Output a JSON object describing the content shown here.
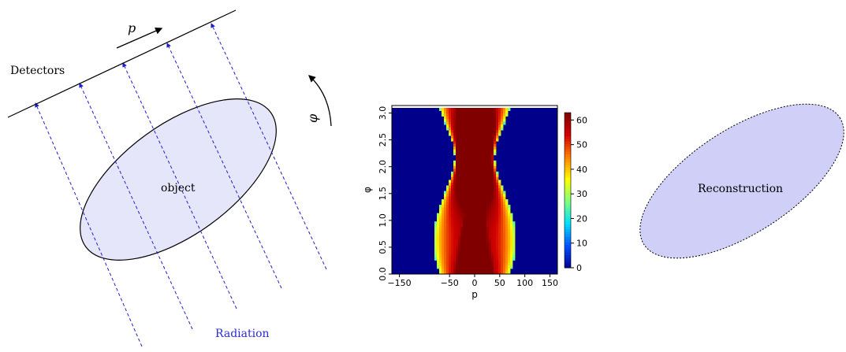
{
  "diagram": {
    "detectors_label": "Detectors",
    "p_label": "p",
    "phi_label": "φ",
    "object_label": "object",
    "radiation_label": "Radiation",
    "reconstruction_label": "Reconstruction",
    "colors": {
      "ray": "#1f1fd0",
      "radiation_text": "#2b2bd6",
      "object_fill": "#e6e6fa",
      "reconstruction_fill": "#cfcff7",
      "outline": "#000000"
    }
  },
  "sinogram": {
    "type": "heatmap",
    "xlabel": "p",
    "ylabel": "φ",
    "x_ticks": [
      -150,
      -50,
      0,
      50,
      100,
      150
    ],
    "x_range": [
      -165,
      165
    ],
    "y_ticks": [
      "0.0",
      "0.5",
      "1.0",
      "1.5",
      "2.0",
      "2.5",
      "3.0"
    ],
    "y_range": [
      0,
      3.14
    ],
    "colorbar_ticks": [
      0,
      10,
      20,
      30,
      40,
      50,
      60
    ],
    "colorbar_range": [
      0,
      63
    ],
    "colormap": [
      "#00008f",
      "#0050ff",
      "#00dfff",
      "#7fff7f",
      "#ffff00",
      "#ff8000",
      "#d40000",
      "#800000"
    ],
    "background_color": "#00008b"
  }
}
